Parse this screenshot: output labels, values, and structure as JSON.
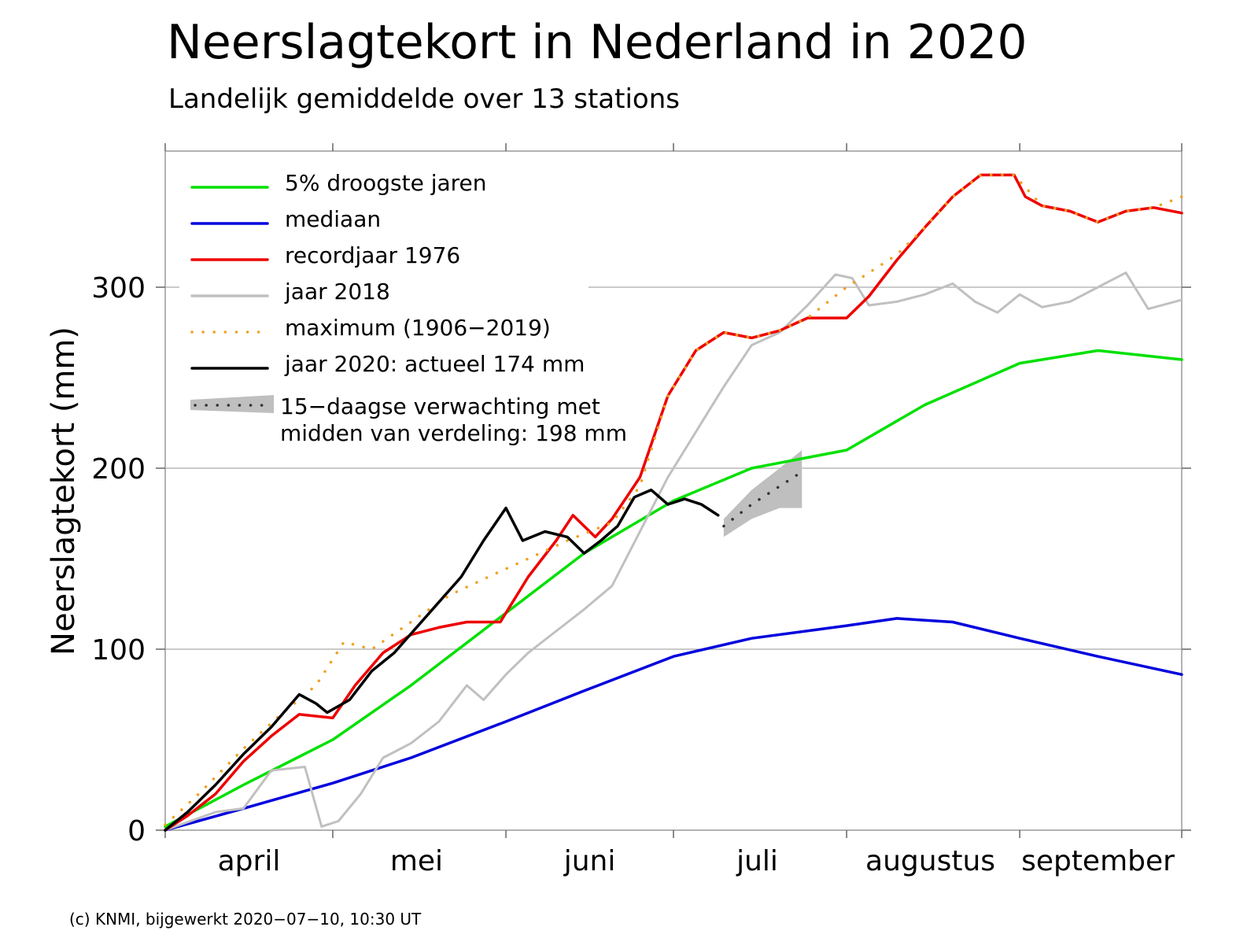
{
  "title": "Neerslagtekort in Nederland in 2020",
  "subtitle": "Landelijk gemiddelde over 13 stations",
  "footer": "(c) KNMI, bijgewerkt 2020−07−10, 10:30 UT",
  "chart_data": {
    "type": "line",
    "title": "Neerslagtekort in Nederland in 2020",
    "subtitle": "Landelijk gemiddelde over 13 stations",
    "ylabel": "Neerslagtekort (mm)",
    "xlabel": "",
    "ylim": [
      0,
      375
    ],
    "yticks": [
      0,
      100,
      200,
      300
    ],
    "xlim": [
      "04-01",
      "09-30"
    ],
    "xtick_marks": [
      "04-01",
      "05-01",
      "06-01",
      "07-01",
      "08-01",
      "09-01",
      "09-30"
    ],
    "xtick_labels": [
      {
        "label": "april",
        "at": "04-16"
      },
      {
        "label": "mei",
        "at": "05-16"
      },
      {
        "label": "juni",
        "at": "06-16"
      },
      {
        "label": "juli",
        "at": "07-16"
      },
      {
        "label": "augustus",
        "at": "08-16"
      },
      {
        "label": "september",
        "at": "09-15"
      }
    ],
    "grid": "horizontal",
    "legend_position": "top-left",
    "series": [
      {
        "name": "5% droogste jaren",
        "color": "#00e000",
        "style": "solid",
        "points": [
          [
            "04-01",
            2
          ],
          [
            "04-15",
            25
          ],
          [
            "05-01",
            50
          ],
          [
            "05-15",
            80
          ],
          [
            "06-01",
            120
          ],
          [
            "06-15",
            153
          ],
          [
            "07-01",
            182
          ],
          [
            "07-15",
            200
          ],
          [
            "08-01",
            210
          ],
          [
            "08-15",
            235
          ],
          [
            "09-01",
            258
          ],
          [
            "09-15",
            265
          ],
          [
            "09-30",
            260
          ]
        ]
      },
      {
        "name": "mediaan",
        "color": "#0000dd",
        "style": "solid",
        "points": [
          [
            "04-01",
            0
          ],
          [
            "04-15",
            12
          ],
          [
            "05-01",
            26
          ],
          [
            "05-15",
            40
          ],
          [
            "06-01",
            60
          ],
          [
            "06-15",
            77
          ],
          [
            "07-01",
            96
          ],
          [
            "07-15",
            106
          ],
          [
            "08-01",
            113
          ],
          [
            "08-10",
            117
          ],
          [
            "08-20",
            115
          ],
          [
            "09-01",
            106
          ],
          [
            "09-15",
            96
          ],
          [
            "09-30",
            86
          ]
        ]
      },
      {
        "name": "recordjaar 1976",
        "color": "#ee0000",
        "style": "solid",
        "points": [
          [
            "04-01",
            0
          ],
          [
            "04-05",
            8
          ],
          [
            "04-10",
            20
          ],
          [
            "04-15",
            38
          ],
          [
            "04-20",
            52
          ],
          [
            "04-25",
            64
          ],
          [
            "05-01",
            62
          ],
          [
            "05-05",
            80
          ],
          [
            "05-10",
            98
          ],
          [
            "05-15",
            108
          ],
          [
            "05-20",
            112
          ],
          [
            "05-25",
            115
          ],
          [
            "05-31",
            115
          ],
          [
            "06-05",
            140
          ],
          [
            "06-10",
            160
          ],
          [
            "06-13",
            174
          ],
          [
            "06-17",
            162
          ],
          [
            "06-20",
            172
          ],
          [
            "06-25",
            195
          ],
          [
            "06-30",
            240
          ],
          [
            "07-05",
            265
          ],
          [
            "07-10",
            275
          ],
          [
            "07-15",
            272
          ],
          [
            "07-20",
            276
          ],
          [
            "07-25",
            283
          ],
          [
            "08-01",
            283
          ],
          [
            "08-05",
            295
          ],
          [
            "08-10",
            315
          ],
          [
            "08-15",
            333
          ],
          [
            "08-20",
            350
          ],
          [
            "08-25",
            362
          ],
          [
            "08-31",
            362
          ],
          [
            "09-02",
            350
          ],
          [
            "09-05",
            345
          ],
          [
            "09-10",
            342
          ],
          [
            "09-15",
            336
          ],
          [
            "09-20",
            342
          ],
          [
            "09-25",
            344
          ],
          [
            "09-30",
            341
          ]
        ]
      },
      {
        "name": "jaar 2018",
        "color": "#c0c0c0",
        "style": "solid",
        "points": [
          [
            "04-01",
            0
          ],
          [
            "04-10",
            10
          ],
          [
            "04-15",
            12
          ],
          [
            "04-20",
            33
          ],
          [
            "04-26",
            35
          ],
          [
            "04-29",
            2
          ],
          [
            "05-02",
            5
          ],
          [
            "05-06",
            20
          ],
          [
            "05-10",
            40
          ],
          [
            "05-15",
            48
          ],
          [
            "05-20",
            60
          ],
          [
            "05-25",
            80
          ],
          [
            "05-28",
            72
          ],
          [
            "06-01",
            86
          ],
          [
            "06-05",
            98
          ],
          [
            "06-10",
            110
          ],
          [
            "06-15",
            122
          ],
          [
            "06-20",
            135
          ],
          [
            "06-25",
            165
          ],
          [
            "06-30",
            195
          ],
          [
            "07-05",
            220
          ],
          [
            "07-10",
            245
          ],
          [
            "07-15",
            268
          ],
          [
            "07-20",
            275
          ],
          [
            "07-25",
            290
          ],
          [
            "07-30",
            307
          ],
          [
            "08-02",
            305
          ],
          [
            "08-05",
            290
          ],
          [
            "08-10",
            292
          ],
          [
            "08-15",
            296
          ],
          [
            "08-20",
            302
          ],
          [
            "08-24",
            292
          ],
          [
            "08-28",
            286
          ],
          [
            "09-01",
            296
          ],
          [
            "09-05",
            289
          ],
          [
            "09-10",
            292
          ],
          [
            "09-15",
            300
          ],
          [
            "09-20",
            308
          ],
          [
            "09-24",
            288
          ],
          [
            "09-30",
            293
          ]
        ]
      },
      {
        "name": "maximum (1906−2019)",
        "color": "#f0a020",
        "style": "dotted",
        "points": [
          [
            "04-01",
            3
          ],
          [
            "04-07",
            20
          ],
          [
            "04-15",
            45
          ],
          [
            "04-21",
            62
          ],
          [
            "04-28",
            80
          ],
          [
            "05-03",
            104
          ],
          [
            "05-08",
            100
          ],
          [
            "05-15",
            115
          ],
          [
            "05-22",
            130
          ],
          [
            "05-31",
            143
          ],
          [
            "06-05",
            150
          ],
          [
            "06-12",
            160
          ],
          [
            "06-20",
            170
          ],
          [
            "06-25",
            190
          ],
          [
            "06-30",
            240
          ],
          [
            "07-05",
            265
          ],
          [
            "07-10",
            275
          ],
          [
            "07-15",
            272
          ],
          [
            "07-20",
            276
          ],
          [
            "07-25",
            283
          ],
          [
            "08-01",
            300
          ],
          [
            "08-05",
            308
          ],
          [
            "08-10",
            318
          ],
          [
            "08-15",
            333
          ],
          [
            "08-20",
            350
          ],
          [
            "08-25",
            362
          ],
          [
            "08-31",
            362
          ],
          [
            "09-05",
            345
          ],
          [
            "09-10",
            342
          ],
          [
            "09-15",
            336
          ],
          [
            "09-20",
            342
          ],
          [
            "09-25",
            344
          ],
          [
            "09-30",
            350
          ]
        ]
      },
      {
        "name": "jaar 2020: actueel 174 mm",
        "color": "#000000",
        "style": "solid",
        "points": [
          [
            "04-01",
            0
          ],
          [
            "04-05",
            10
          ],
          [
            "04-10",
            25
          ],
          [
            "04-15",
            42
          ],
          [
            "04-20",
            57
          ],
          [
            "04-25",
            75
          ],
          [
            "04-28",
            70
          ],
          [
            "04-30",
            65
          ],
          [
            "05-04",
            72
          ],
          [
            "05-08",
            88
          ],
          [
            "05-12",
            98
          ],
          [
            "05-16",
            112
          ],
          [
            "05-20",
            126
          ],
          [
            "05-24",
            140
          ],
          [
            "05-28",
            160
          ],
          [
            "06-01",
            178
          ],
          [
            "06-04",
            160
          ],
          [
            "06-08",
            165
          ],
          [
            "06-12",
            162
          ],
          [
            "06-15",
            153
          ],
          [
            "06-18",
            160
          ],
          [
            "06-21",
            168
          ],
          [
            "06-24",
            184
          ],
          [
            "06-27",
            188
          ],
          [
            "06-30",
            180
          ],
          [
            "07-03",
            183
          ],
          [
            "07-06",
            180
          ],
          [
            "07-09",
            174
          ]
        ]
      },
      {
        "name": "15−daagse verwachting met midden van verdeling: 198 mm",
        "color": "#333333",
        "style": "dotted",
        "points": [
          [
            "07-10",
            168
          ],
          [
            "07-15",
            180
          ],
          [
            "07-20",
            190
          ],
          [
            "07-24",
            198
          ]
        ],
        "band_lower": [
          [
            "07-10",
            162
          ],
          [
            "07-15",
            172
          ],
          [
            "07-20",
            178
          ],
          [
            "07-24",
            178
          ]
        ],
        "band_upper": [
          [
            "07-10",
            172
          ],
          [
            "07-15",
            188
          ],
          [
            "07-20",
            200
          ],
          [
            "07-24",
            210
          ]
        ]
      }
    ],
    "legend": [
      {
        "label": "5% droogste jaren"
      },
      {
        "label": "mediaan"
      },
      {
        "label": "recordjaar 1976"
      },
      {
        "label": "jaar 2018"
      },
      {
        "label": "maximum (1906−2019)"
      },
      {
        "label": "jaar 2020: actueel 174 mm"
      },
      {
        "label": "15−daagse verwachting met",
        "label2": "midden van verdeling: 198 mm"
      }
    ]
  }
}
